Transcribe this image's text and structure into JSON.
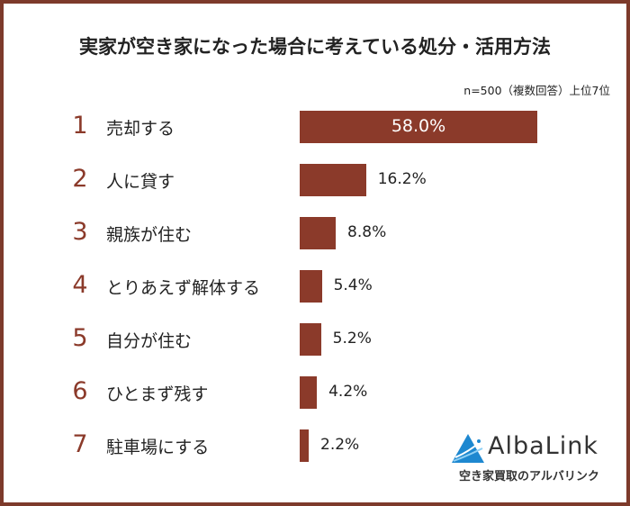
{
  "chart_data": {
    "type": "bar",
    "orientation": "horizontal",
    "title": "実家が空き家になった場合に考えている処分・活用方法",
    "subtitle": "n=500（複数回答）上位7位",
    "ranks": [
      "1",
      "2",
      "3",
      "4",
      "5",
      "6",
      "7"
    ],
    "categories": [
      "売却する",
      "人に貸す",
      "親族が住む",
      "とりあえず解体する",
      "自分が住む",
      "ひとまず残す",
      "駐車場にする"
    ],
    "values": [
      58.0,
      16.2,
      8.8,
      5.4,
      5.2,
      4.2,
      2.2
    ],
    "value_labels": [
      "58.0%",
      "16.2%",
      "8.8%",
      "5.4%",
      "5.2%",
      "4.2%",
      "2.2%"
    ],
    "unit": "%",
    "xlim": [
      0,
      100
    ],
    "grid": false,
    "bar_color": "#8b3a2a",
    "rank_color": "#8b3a2a",
    "border_color": "#7d3a2b"
  },
  "logo": {
    "brand": "AlbaLink",
    "tagline": "空き家買取のアルバリンク",
    "color": "#1e88d0"
  }
}
